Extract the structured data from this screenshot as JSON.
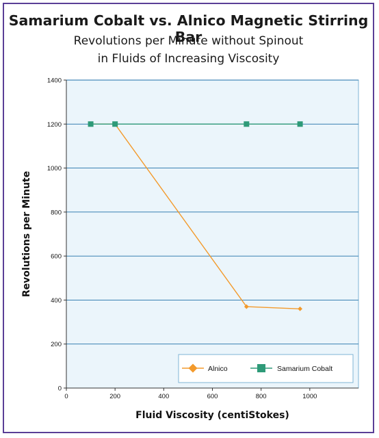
{
  "chart_data": {
    "type": "line",
    "title": "Samarium Cobalt vs. Alnico Magnetic Stirring Bar",
    "subtitle_lines": [
      "Revolutions per Minute without Spinout",
      "in Fluids of Increasing Viscosity"
    ],
    "xlabel": "Fluid Viscosity (centiStokes)",
    "ylabel": "Revolutions per Minute",
    "xlim": [
      0,
      1200
    ],
    "ylim": [
      0,
      1400
    ],
    "x_ticks": [
      0,
      200,
      400,
      600,
      800,
      1000
    ],
    "y_ticks": [
      0,
      200,
      400,
      600,
      800,
      1000,
      1200,
      1400
    ],
    "grid": "horizontal",
    "legend_position": "bottom-right",
    "series": [
      {
        "name": "Alnico",
        "color": "#f39a2b",
        "marker": "diamond",
        "x": [
          100,
          200,
          740,
          960
        ],
        "y": [
          1200,
          1200,
          370,
          360
        ]
      },
      {
        "name": "Samarium Cobalt",
        "color": "#2e9a78",
        "marker": "square",
        "x": [
          100,
          200,
          740,
          960
        ],
        "y": [
          1200,
          1200,
          1200,
          1200
        ]
      }
    ]
  },
  "colors": {
    "frame_border": "#5a3e96",
    "plot_background": "#ebf5fb",
    "plot_border": "#7fb4d4",
    "gridline": "#1e6fa8"
  }
}
